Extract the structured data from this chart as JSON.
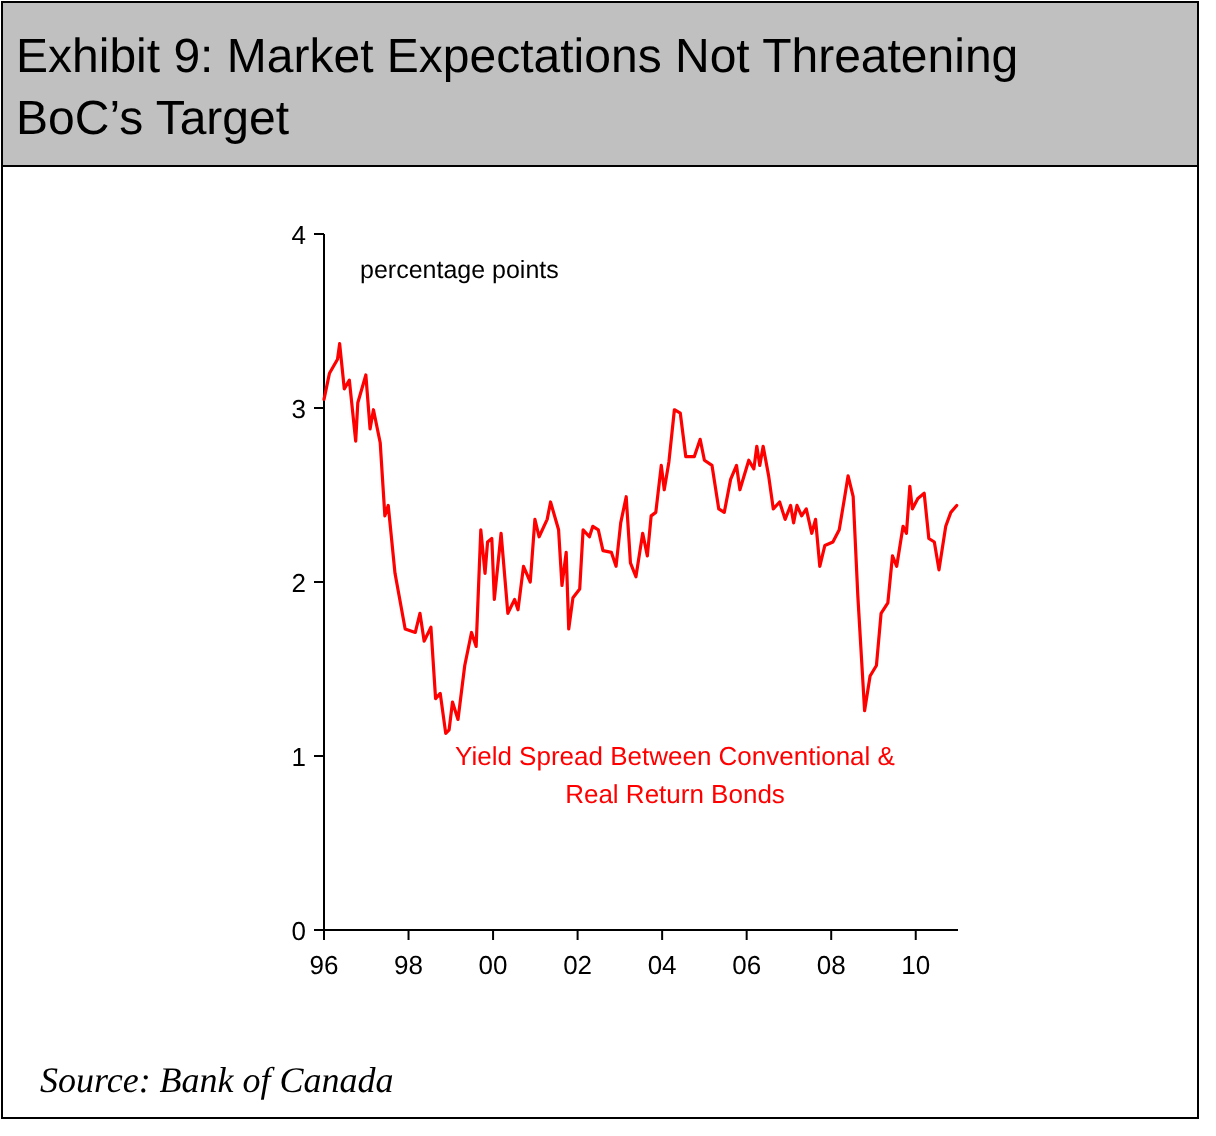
{
  "chart_data": {
    "type": "line",
    "title": "Exhibit 9: Market Expectations Not Threatening BoC’s Target",
    "ylabel": "percentage points",
    "annotations": [
      "Source: Bank of Canada"
    ],
    "xlim": [
      1996,
      2011
    ],
    "xticks": [
      {
        "value": 1996,
        "label": "96"
      },
      {
        "value": 1998,
        "label": "98"
      },
      {
        "value": 2000,
        "label": "00"
      },
      {
        "value": 2002,
        "label": "02"
      },
      {
        "value": 2004,
        "label": "04"
      },
      {
        "value": 2006,
        "label": "06"
      },
      {
        "value": 2008,
        "label": "08"
      },
      {
        "value": 2010,
        "label": "10"
      }
    ],
    "ylim": [
      0,
      4
    ],
    "yticks": [
      0,
      1,
      2,
      3,
      4
    ],
    "grid": false,
    "series": [
      {
        "name": "Yield Spread Between Conventional & Real Return Bonds",
        "color": "#ff0000",
        "x": [
          1996.0,
          1996.13,
          1996.32,
          1996.37,
          1996.48,
          1996.6,
          1996.75,
          1996.8,
          1996.99,
          1997.09,
          1997.17,
          1997.33,
          1997.44,
          1997.52,
          1997.68,
          1997.92,
          1998.16,
          1998.27,
          1998.37,
          1998.53,
          1998.64,
          1998.75,
          1998.88,
          1998.96,
          1999.04,
          1999.17,
          1999.33,
          1999.49,
          1999.6,
          1999.71,
          1999.81,
          1999.87,
          1999.97,
          2000.03,
          2000.19,
          2000.35,
          2000.51,
          2000.59,
          2000.72,
          2000.88,
          2000.99,
          2001.09,
          2001.28,
          2001.36,
          2001.55,
          2001.63,
          2001.73,
          2001.79,
          2001.89,
          2002.05,
          2002.13,
          2002.28,
          2002.36,
          2002.49,
          2002.6,
          2002.8,
          2002.91,
          2003.02,
          2003.15,
          2003.25,
          2003.38,
          2003.54,
          2003.65,
          2003.74,
          2003.85,
          2003.98,
          2004.05,
          2004.16,
          2004.29,
          2004.43,
          2004.56,
          2004.76,
          2004.9,
          2005.0,
          2005.18,
          2005.34,
          2005.47,
          2005.62,
          2005.76,
          2005.84,
          2006.05,
          2006.17,
          2006.24,
          2006.31,
          2006.39,
          2006.52,
          2006.63,
          2006.78,
          2006.91,
          2007.04,
          2007.11,
          2007.19,
          2007.3,
          2007.41,
          2007.54,
          2007.63,
          2007.73,
          2007.85,
          2008.04,
          2008.19,
          2008.32,
          2008.4,
          2008.52,
          2008.63,
          2008.79,
          2008.92,
          2009.07,
          2009.18,
          2009.34,
          2009.45,
          2009.55,
          2009.7,
          2009.78,
          2009.86,
          2009.92,
          2010.05,
          2010.2,
          2010.31,
          2010.44,
          2010.55,
          2010.71,
          2010.83,
          2010.97
        ],
        "values": [
          3.05,
          3.2,
          3.28,
          3.37,
          3.11,
          3.16,
          2.81,
          3.03,
          3.19,
          2.88,
          2.99,
          2.8,
          2.38,
          2.44,
          2.05,
          1.73,
          1.71,
          1.82,
          1.66,
          1.74,
          1.33,
          1.36,
          1.13,
          1.15,
          1.31,
          1.21,
          1.52,
          1.71,
          1.63,
          2.3,
          2.05,
          2.23,
          2.25,
          1.9,
          2.28,
          1.82,
          1.9,
          1.84,
          2.09,
          2.0,
          2.36,
          2.26,
          2.36,
          2.46,
          2.3,
          1.98,
          2.17,
          1.73,
          1.91,
          1.96,
          2.3,
          2.26,
          2.32,
          2.3,
          2.18,
          2.17,
          2.09,
          2.34,
          2.49,
          2.11,
          2.03,
          2.28,
          2.15,
          2.38,
          2.4,
          2.67,
          2.53,
          2.69,
          2.99,
          2.97,
          2.72,
          2.72,
          2.82,
          2.7,
          2.67,
          2.42,
          2.4,
          2.59,
          2.67,
          2.53,
          2.7,
          2.65,
          2.78,
          2.67,
          2.78,
          2.61,
          2.42,
          2.46,
          2.36,
          2.44,
          2.34,
          2.44,
          2.38,
          2.42,
          2.28,
          2.36,
          2.09,
          2.21,
          2.23,
          2.3,
          2.49,
          2.61,
          2.49,
          1.92,
          1.26,
          1.46,
          1.52,
          1.82,
          1.88,
          2.15,
          2.09,
          2.32,
          2.28,
          2.55,
          2.42,
          2.48,
          2.51,
          2.25,
          2.23,
          2.07,
          2.32,
          2.4,
          2.44
        ]
      }
    ]
  }
}
